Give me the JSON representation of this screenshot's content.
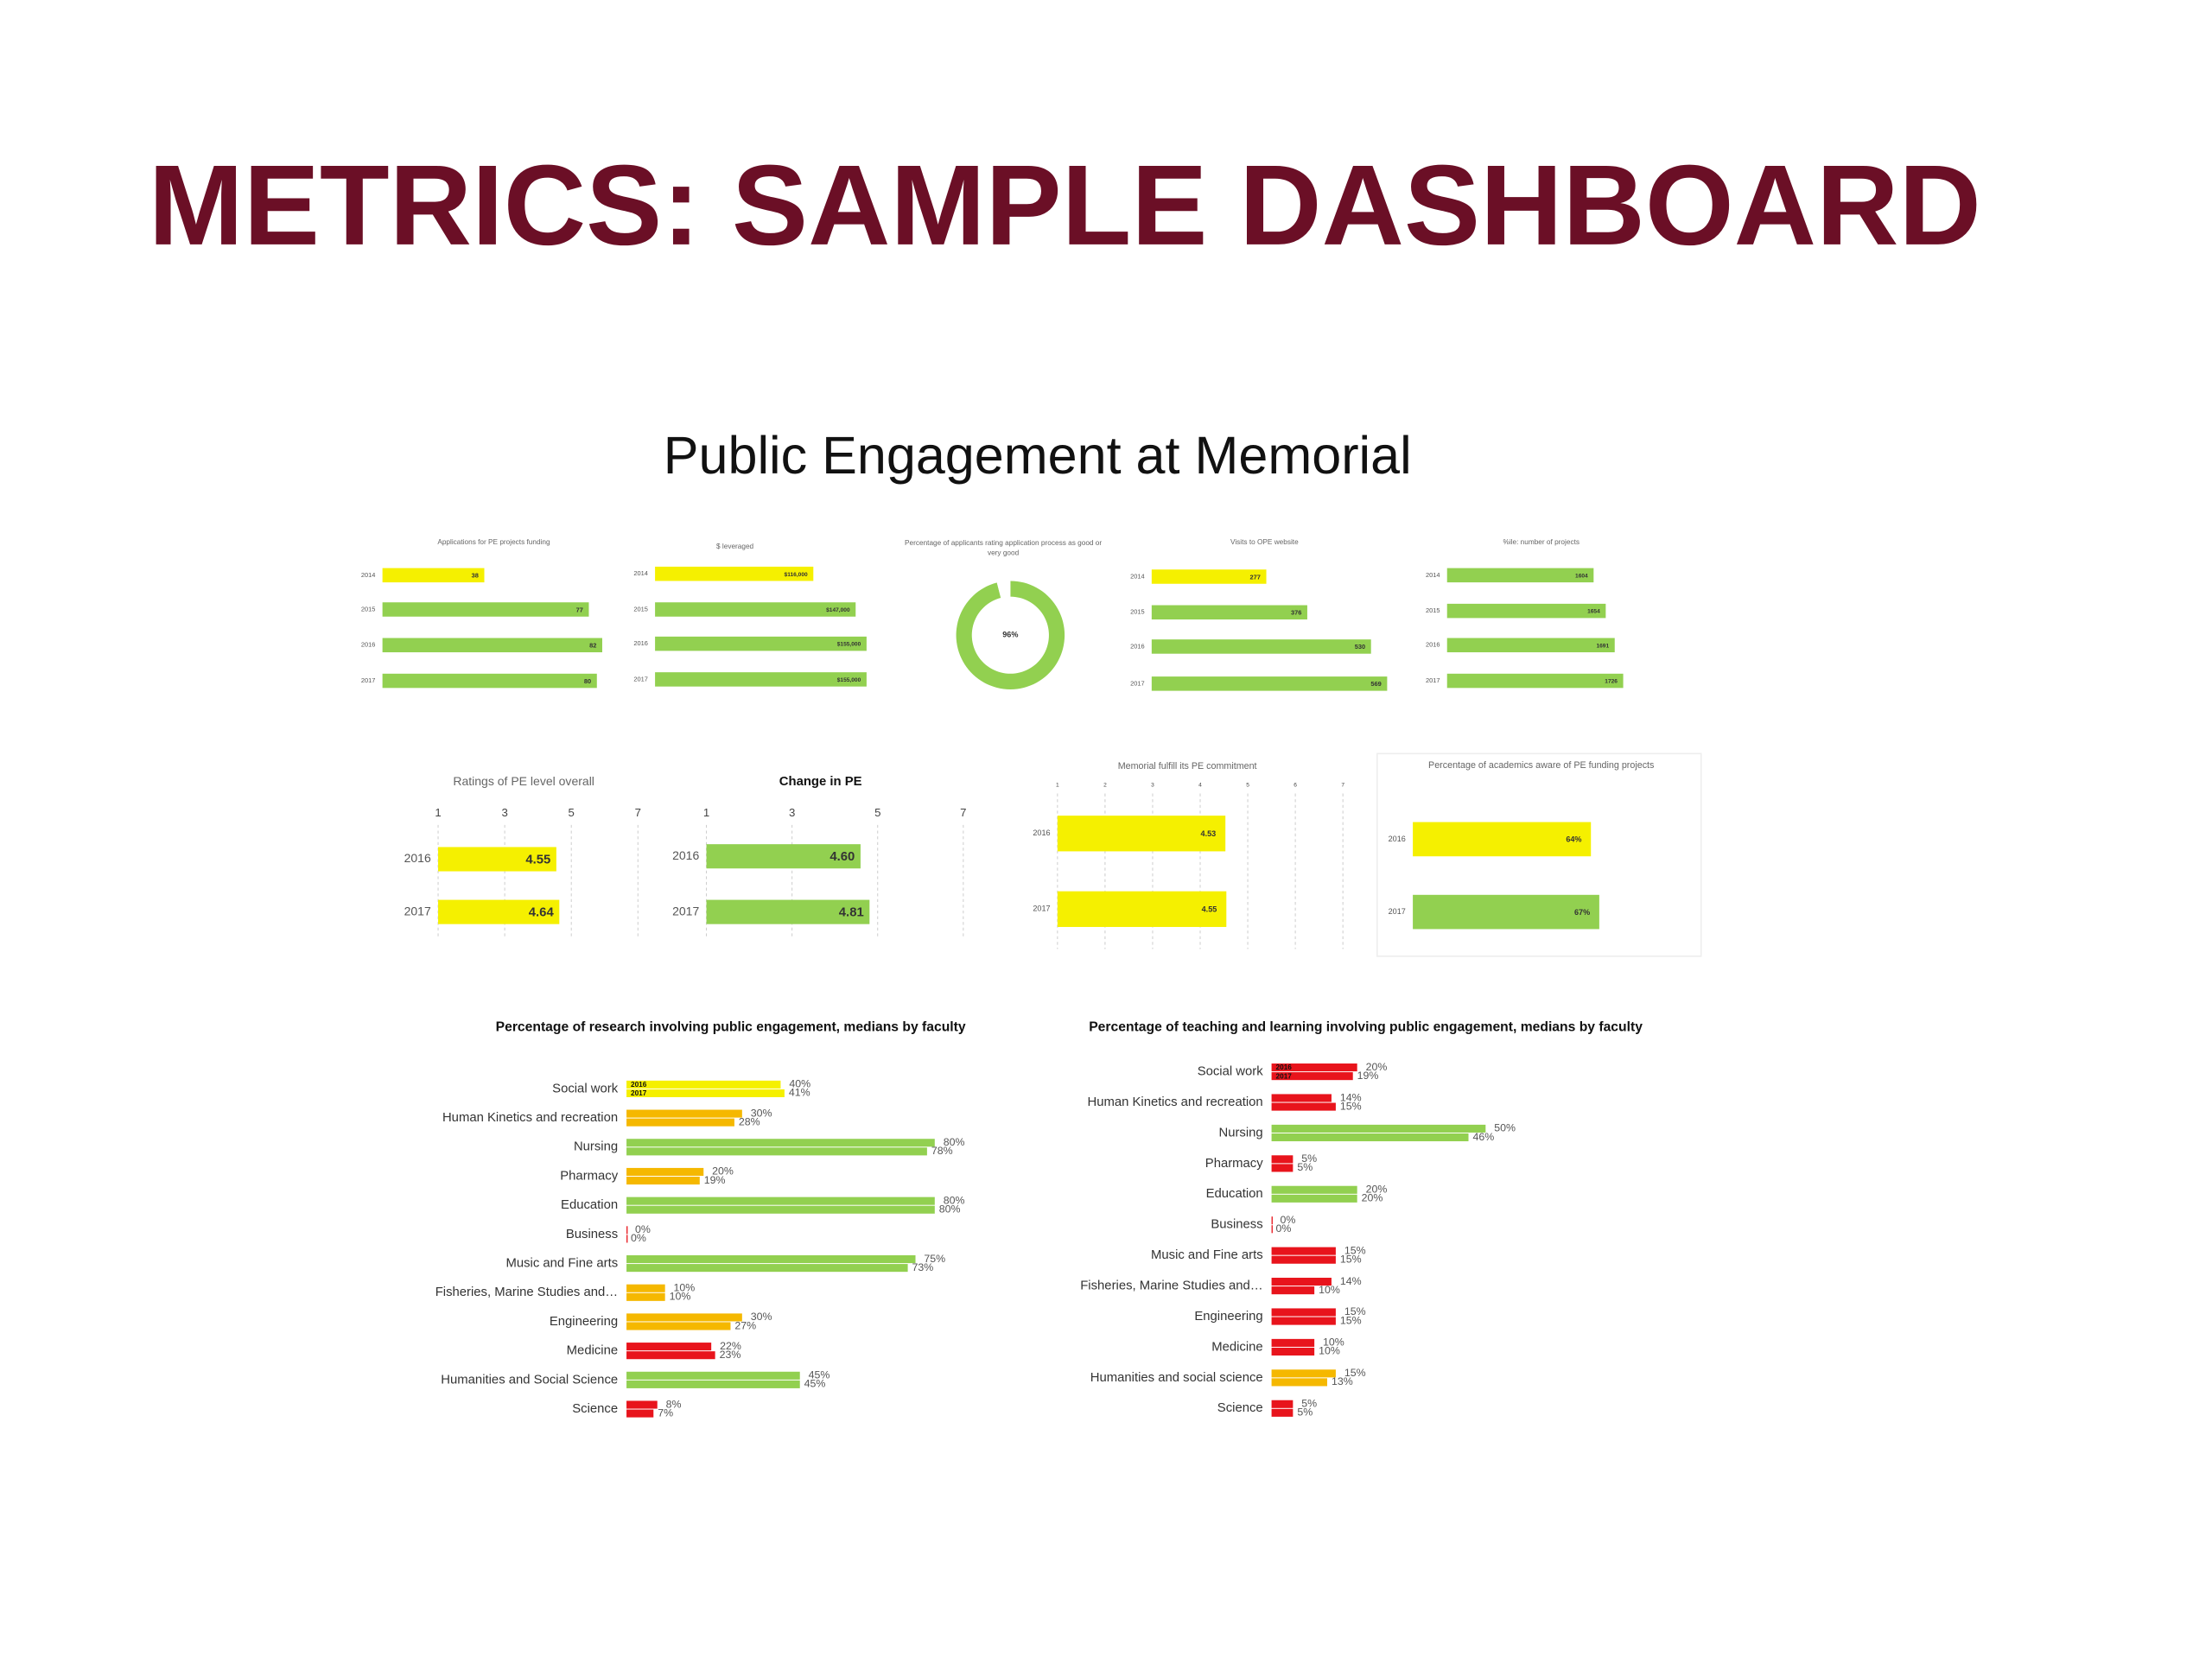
{
  "header": {
    "title": "METRICS: SAMPLE DASHBOARD",
    "subtitle": "Public Engagement at Memorial"
  },
  "chart_data": [
    {
      "type": "bar",
      "orientation": "horizontal",
      "title": "Applications for PE projects funding",
      "categories": [
        "2014",
        "2015",
        "2016",
        "2017"
      ],
      "values": [
        38,
        77,
        82,
        80
      ],
      "colors": [
        "#f5f000",
        "#92d050",
        "#92d050",
        "#92d050"
      ],
      "xlim": [
        0,
        82
      ]
    },
    {
      "type": "bar",
      "orientation": "horizontal",
      "title": "$ leveraged",
      "categories": [
        "2014",
        "2015",
        "2016",
        "2017"
      ],
      "values": [
        116000,
        147000,
        155000,
        155000
      ],
      "value_labels": [
        "$116,000",
        "$147,000",
        "$155,000",
        "$155,000"
      ],
      "colors": [
        "#f5f000",
        "#92d050",
        "#92d050",
        "#92d050"
      ],
      "xlim": [
        0,
        160000
      ]
    },
    {
      "type": "pie",
      "donut": true,
      "title": "Percentage of applicants rating application process as good or very good",
      "values": [
        96,
        4
      ],
      "value_labels": [
        "96%",
        null
      ],
      "colors": [
        "#92d050",
        "#ffffff"
      ]
    },
    {
      "type": "bar",
      "orientation": "horizontal",
      "title": "Visits to OPE website",
      "categories": [
        "2014",
        "2015",
        "2016",
        "2017"
      ],
      "values": [
        277,
        376,
        530,
        569
      ],
      "colors": [
        "#f5f000",
        "#92d050",
        "#92d050",
        "#92d050"
      ],
      "xlim": [
        0,
        600
      ]
    },
    {
      "type": "bar",
      "orientation": "horizontal",
      "title": "%ile: number of projects",
      "categories": [
        "2014",
        "2015",
        "2016",
        "2017"
      ],
      "values": [
        1604,
        1654,
        1691,
        1726
      ],
      "colors": [
        "#92d050",
        "#92d050",
        "#92d050",
        "#92d050"
      ],
      "xlim": [
        1000,
        1800
      ]
    },
    {
      "type": "bar",
      "orientation": "horizontal",
      "title": "Ratings of PE level overall",
      "categories": [
        "2016",
        "2017"
      ],
      "values": [
        4.55,
        4.64
      ],
      "colors": [
        "#f5f000",
        "#f5f000"
      ],
      "xlim": [
        1,
        7
      ],
      "xticks": [
        1,
        3,
        5,
        7
      ],
      "grid": true
    },
    {
      "type": "bar",
      "orientation": "horizontal",
      "title": "Change in PE",
      "categories": [
        "2016",
        "2017"
      ],
      "values": [
        4.6,
        4.81
      ],
      "value_labels": [
        "4.60",
        "4.81"
      ],
      "colors": [
        "#92d050",
        "#92d050"
      ],
      "xlim": [
        1,
        7
      ],
      "xticks": [
        1,
        3,
        5,
        7
      ],
      "grid": true
    },
    {
      "type": "bar",
      "orientation": "horizontal",
      "title": "Memorial fulfill its PE commitment",
      "categories": [
        "2016",
        "2017"
      ],
      "values": [
        4.53,
        4.55
      ],
      "colors": [
        "#f5f000",
        "#f5f000"
      ],
      "xlim": [
        1,
        7
      ],
      "xticks": [
        1,
        2,
        3,
        4,
        5,
        6,
        7
      ],
      "grid": true
    },
    {
      "type": "bar",
      "orientation": "horizontal",
      "title": "Percentage of academics aware of PE funding projects",
      "categories": [
        "2016",
        "2017"
      ],
      "values": [
        64,
        67
      ],
      "value_labels": [
        "64%",
        "67%"
      ],
      "colors": [
        "#f5f000",
        "#92d050"
      ],
      "xlim": [
        0,
        100
      ]
    },
    {
      "type": "bar",
      "orientation": "horizontal",
      "title": "Percentage of research involving public engagement, medians by faculty",
      "categories": [
        "Social work",
        "Human Kinetics and recreation",
        "Nursing",
        "Pharmacy",
        "Education",
        "Business",
        "Music and Fine arts",
        "Fisheries, Marine Studies and…",
        "Engineering",
        "Medicine",
        "Humanities and Social Science",
        "Science"
      ],
      "colors": [
        "#f5f000",
        "#f5b800",
        "#92d050",
        "#f5b800",
        "#92d050",
        "#e8141c",
        "#92d050",
        "#f5b800",
        "#f5b800",
        "#e8141c",
        "#92d050",
        "#e8141c"
      ],
      "series": [
        {
          "name": "2016",
          "values": [
            40,
            30,
            80,
            20,
            80,
            0,
            75,
            10,
            30,
            22,
            45,
            8
          ],
          "value_labels": [
            "40%",
            "30%",
            "80%",
            "20%",
            "80%",
            "0%",
            "75%",
            "10%",
            "30%",
            "22%",
            "45%",
            "8%"
          ]
        },
        {
          "name": "2017",
          "values": [
            41,
            28,
            78,
            19,
            80,
            0,
            73,
            10,
            27,
            23,
            45,
            7
          ],
          "value_labels": [
            "41%",
            "28%",
            "78%",
            "19%",
            "80%",
            "0%",
            "73%",
            "10%",
            "27%",
            "23%",
            "45%",
            "7%"
          ]
        }
      ],
      "xlim": [
        0,
        100
      ]
    },
    {
      "type": "bar",
      "orientation": "horizontal",
      "title": "Percentage of teaching and learning involving public engagement, medians by faculty",
      "categories": [
        "Social work",
        "Human Kinetics and recreation",
        "Nursing",
        "Pharmacy",
        "Education",
        "Business",
        "Music and Fine arts",
        "Fisheries, Marine Studies and…",
        "Engineering",
        "Medicine",
        "Humanities and social science",
        "Science"
      ],
      "colors": [
        "#e8141c",
        "#e8141c",
        "#92d050",
        "#e8141c",
        "#92d050",
        "#e8141c",
        "#e8141c",
        "#e8141c",
        "#e8141c",
        "#e8141c",
        "#f5b800",
        "#e8141c"
      ],
      "series": [
        {
          "name": "2016",
          "values": [
            20,
            14,
            50,
            5,
            20,
            0,
            15,
            14,
            15,
            10,
            15,
            5
          ],
          "value_labels": [
            "20%",
            "14%",
            "50%",
            "5%",
            "20%",
            "0%",
            "15%",
            "14%",
            "15%",
            "10%",
            "15%",
            "5%"
          ]
        },
        {
          "name": "2017",
          "values": [
            19,
            15,
            46,
            5,
            20,
            0,
            15,
            10,
            15,
            10,
            13,
            5
          ],
          "value_labels": [
            "19%",
            "15%",
            "46%",
            "5%",
            "20%",
            "0%",
            "15%",
            "10%",
            "15%",
            "10%",
            "13%",
            "5%"
          ]
        }
      ],
      "xlim": [
        0,
        100
      ]
    }
  ]
}
